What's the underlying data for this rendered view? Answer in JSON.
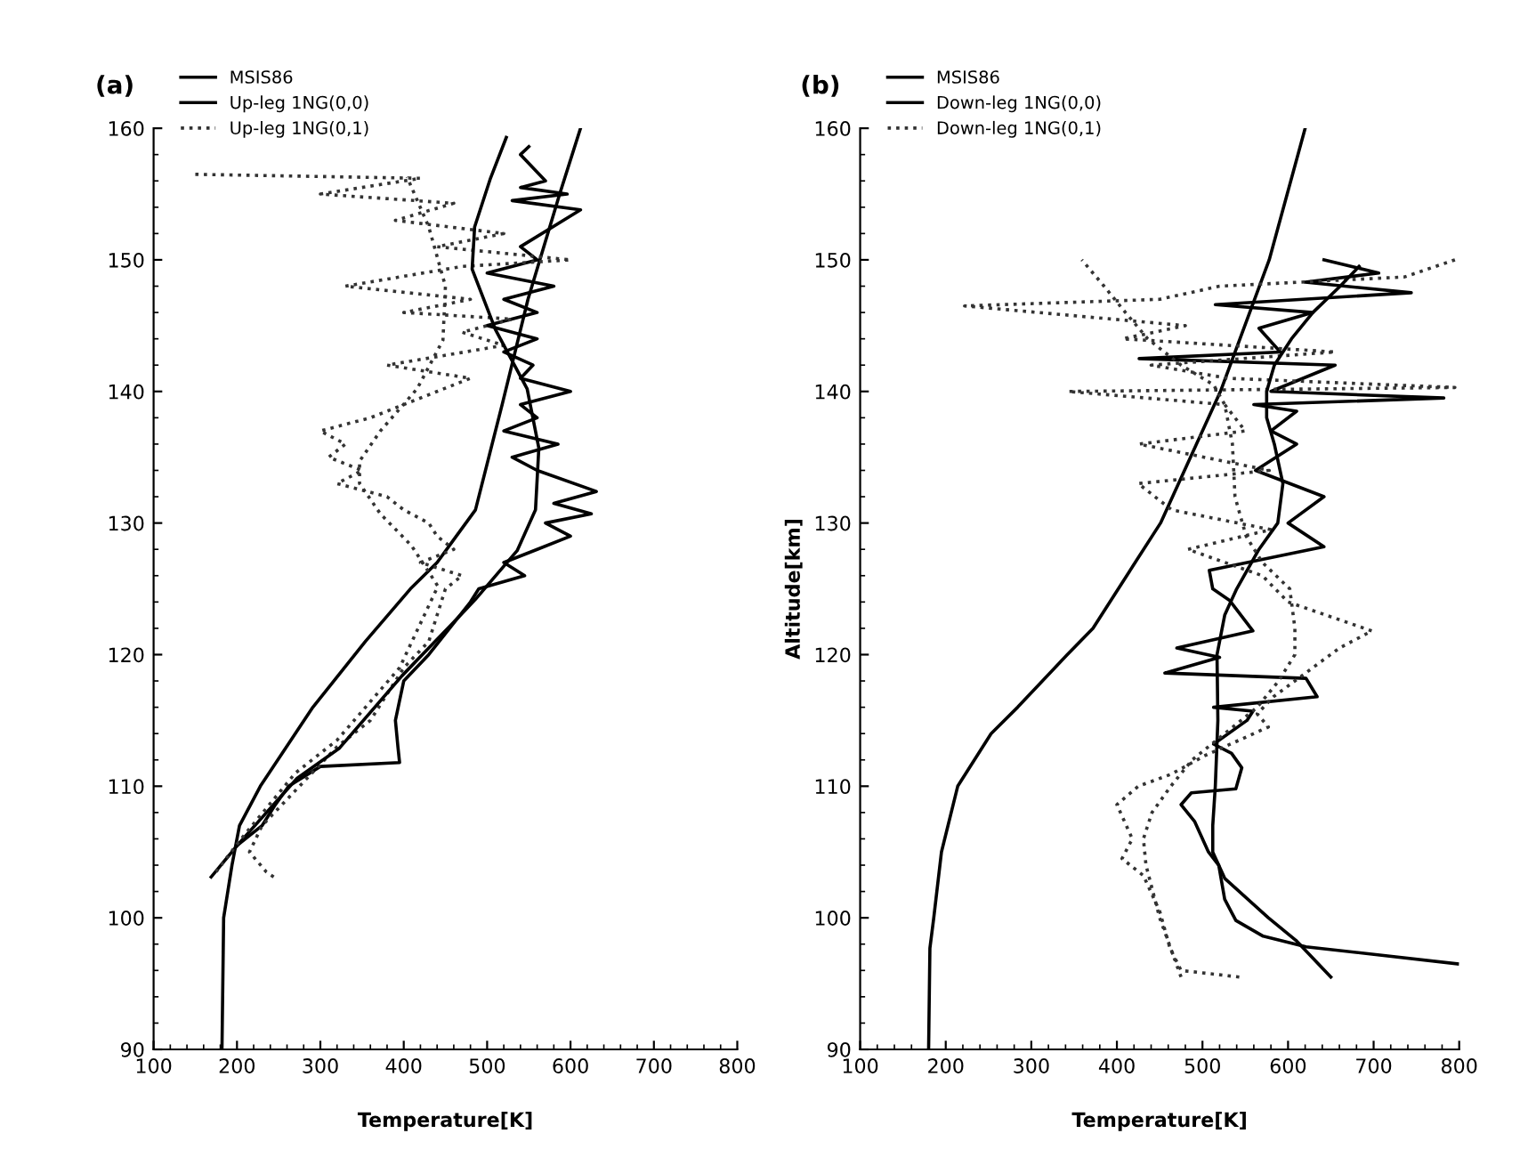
{
  "chart_data": [
    {
      "type": "line",
      "title": "(a)",
      "xlabel": "Temperature[K]",
      "xlim": [
        100,
        800
      ],
      "xticks": [
        100,
        200,
        300,
        400,
        500,
        600,
        700,
        800
      ],
      "ylim": [
        90,
        160
      ],
      "yticks": [
        90,
        100,
        110,
        120,
        130,
        140,
        150,
        160
      ],
      "legend": "top left",
      "grid": false,
      "marker": "none",
      "series": [
        {
          "name": "MSIS86",
          "color": "#000000",
          "line_style": "solid",
          "x": [
            182,
            183,
            184,
            194,
            203,
            228,
            291,
            354,
            408,
            440,
            486,
            518,
            549,
            587,
            612
          ],
          "values": [
            90,
            95,
            100,
            104,
            107,
            110,
            116,
            121,
            125,
            127,
            131,
            139,
            147,
            155,
            160
          ]
        },
        {
          "name": "Up-leg 1NG(0,0)",
          "color": "#000000",
          "line_style": "solid",
          "x": [
            200,
            230,
            245,
            262,
            300,
            395,
            393,
            390,
            395,
            400,
            430,
            455,
            480,
            490,
            545,
            520,
            560,
            600,
            570,
            625,
            580,
            631,
            560,
            530,
            585,
            520,
            560,
            540,
            600,
            540,
            555,
            520,
            560,
            500,
            560,
            520,
            580,
            500,
            560,
            540,
            612,
            530,
            596,
            540,
            570,
            555,
            540,
            550
          ],
          "values": [
            105.5,
            107,
            108.5,
            110,
            111.5,
            111.8,
            113,
            115,
            116.5,
            118,
            120,
            122,
            124,
            125,
            126,
            127,
            128,
            129,
            130,
            130.7,
            131.5,
            132.4,
            134,
            135,
            136,
            137,
            138,
            139,
            140,
            141,
            142,
            143,
            144,
            145,
            146,
            147,
            148,
            149,
            150,
            151,
            153.8,
            154.5,
            155,
            155.5,
            156,
            157,
            158,
            158.6
          ]
        },
        {
          "name": "Up-leg 1NG(0,1)",
          "color": "#333333",
          "line_style": "dotted",
          "x": [
            244,
            235,
            215,
            230,
            260,
            290,
            320,
            360,
            380,
            400,
            430,
            440,
            450,
            470,
            420,
            460,
            440,
            430,
            400,
            380,
            320,
            350,
            310,
            330,
            300,
            360,
            400,
            440,
            480,
            380,
            520,
            470,
            530,
            400,
            480,
            330,
            470,
            600,
            440,
            520,
            390,
            460,
            300,
            420,
            150
          ],
          "values": [
            103.1,
            103.5,
            105,
            107,
            109,
            111,
            113,
            115,
            117,
            119,
            121,
            123,
            125,
            126,
            127,
            128,
            129,
            130,
            131,
            132,
            133,
            134,
            135,
            136,
            137,
            138,
            139,
            140,
            141,
            142,
            143.5,
            144.5,
            145.5,
            146,
            147,
            148,
            149.5,
            150,
            151,
            152,
            153,
            154.3,
            155,
            156.2,
            156.5
          ]
        },
        {
          "color": "#000000",
          "line_style": "solid",
          "x": [
            169,
            203,
            272,
            323,
            398,
            474,
            486,
            536,
            558,
            562,
            548,
            510,
            482,
            485,
            504,
            523
          ],
          "values": [
            103.1,
            105.7,
            110.6,
            112.9,
            118.4,
            123.4,
            124.2,
            127.9,
            131,
            135.7,
            140.2,
            144.7,
            149.3,
            152.5,
            156.2,
            159.3
          ]
        },
        {
          "color": "#333333",
          "line_style": "dotted",
          "x": [
            175,
            205,
            270,
            320,
            395,
            441,
            409,
            372,
            347,
            347,
            372,
            416,
            447,
            450,
            430,
            404
          ],
          "values": [
            103.5,
            106,
            111,
            113.5,
            119,
            125.2,
            128.3,
            130.7,
            133,
            134.7,
            137,
            140.2,
            143.9,
            148,
            152.5,
            156.3
          ]
        }
      ]
    },
    {
      "type": "line",
      "title": "(b)",
      "xlabel": "Temperature[K]",
      "ylabel": "Altitude[km]",
      "xlim": [
        100,
        800
      ],
      "xticks": [
        100,
        200,
        300,
        400,
        500,
        600,
        700,
        800
      ],
      "ylim": [
        90,
        160
      ],
      "yticks": [
        90,
        100,
        110,
        120,
        130,
        140,
        150,
        160
      ],
      "legend": "top left",
      "grid": false,
      "marker": "none",
      "series": [
        {
          "name": "MSIS86",
          "color": "#000000",
          "line_style": "solid",
          "x": [
            180,
            181.5,
            186,
            195,
            214,
            253,
            284,
            342,
            372,
            451,
            521,
            578,
            620
          ],
          "values": [
            90,
            97.7,
            100,
            105,
            110,
            114,
            116,
            120,
            122,
            130,
            140,
            150,
            160
          ]
        },
        {
          "name": "Down-leg 1NG(0,0)",
          "color": "#000000",
          "line_style": "solid",
          "x": [
            798,
            621,
            571,
            539,
            526,
            519,
            507,
            491,
            475,
            487,
            539,
            546,
            534,
            513,
            552,
            559,
            513,
            634,
            621,
            456,
            520,
            470,
            559,
            532,
            512,
            508,
            642,
            600,
            642,
            562,
            610,
            580,
            610,
            560,
            782,
            580,
            655,
            426,
            591,
            566,
            629,
            515,
            744,
            620,
            706,
            642
          ],
          "values": [
            96.5,
            97.8,
            98.6,
            99.8,
            101.4,
            104,
            105,
            107.3,
            108.6,
            109.5,
            109.8,
            111.4,
            112.5,
            113.2,
            115,
            115.7,
            116,
            116.8,
            118.2,
            118.6,
            119.8,
            120.5,
            121.8,
            124.1,
            125,
            126.4,
            128.2,
            130,
            132,
            134,
            136,
            137,
            138.5,
            139,
            139.5,
            140,
            142,
            142.5,
            143,
            144.8,
            146,
            146.6,
            147.5,
            148.3,
            149,
            150
          ]
        },
        {
          "name": "Down-leg 1NG(0,1)",
          "color": "#333333",
          "line_style": "dotted",
          "x": [
            543,
            475,
            462,
            450,
            431,
            406,
            418,
            400,
            425,
            463,
            502,
            577,
            564,
            583,
            660,
            698,
            600,
            570,
            483,
            580,
            464,
            425,
            578,
            426,
            550,
            526,
            343,
            795,
            530,
            440,
            655,
            407,
            480,
            222,
            450,
            520,
            736,
            795
          ],
          "values": [
            95.5,
            96,
            97.7,
            100.5,
            103.2,
            104.5,
            106,
            108.6,
            110,
            110.9,
            112.3,
            114.5,
            115.5,
            116.8,
            120.5,
            121.8,
            124,
            126,
            128,
            129.5,
            131,
            133,
            134,
            136,
            137,
            139,
            140,
            140.3,
            141,
            142,
            143,
            144,
            145,
            146.5,
            147,
            148,
            148.7,
            150
          ]
        },
        {
          "color": "#000000",
          "line_style": "solid",
          "x": [
            650,
            609,
            577,
            526,
            512,
            512,
            515,
            518,
            517,
            526,
            540,
            566,
            588,
            594,
            584,
            575,
            575,
            584,
            604,
            629,
            661,
            683
          ],
          "values": [
            95.5,
            98.3,
            100,
            103,
            105,
            107,
            110,
            115,
            120,
            123,
            125,
            128,
            130,
            133,
            136,
            138,
            140,
            142,
            144,
            146,
            148,
            149.5
          ]
        },
        {
          "color": "#333333",
          "line_style": "dotted",
          "x": [
            475,
            450,
            434,
            431,
            441,
            463,
            488,
            526,
            564,
            589,
            608,
            608,
            602,
            570,
            551,
            538,
            535,
            526,
            513,
            475,
            436,
            410,
            385,
            359
          ],
          "values": [
            95.5,
            100,
            104,
            106,
            108,
            110,
            112,
            114,
            116,
            118,
            120,
            122,
            125,
            127,
            129,
            132,
            136,
            139,
            140.5,
            142,
            144,
            146,
            148,
            150
          ]
        }
      ]
    }
  ]
}
